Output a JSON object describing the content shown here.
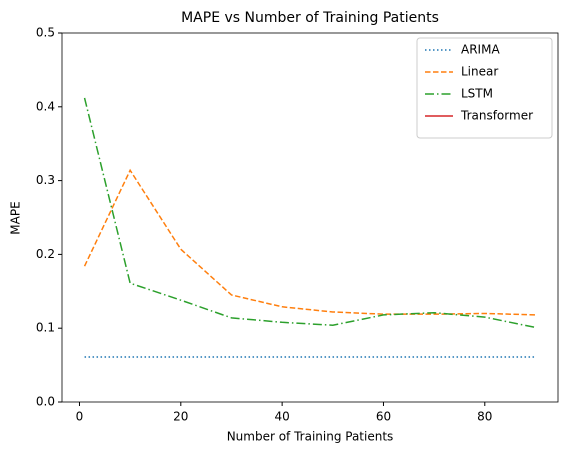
{
  "chart_data": {
    "type": "line",
    "title": "MAPE vs Number of Training Patients",
    "xlabel": "Number of Training Patients",
    "ylabel": "MAPE",
    "x": [
      1,
      10,
      20,
      30,
      40,
      50,
      60,
      70,
      80,
      90
    ],
    "series": [
      {
        "name": "ARIMA",
        "color": "#1f77b4",
        "linestyle": "dotted",
        "values": [
          0.061,
          0.061,
          0.061,
          0.061,
          0.061,
          0.061,
          0.061,
          0.061,
          0.061,
          0.061
        ]
      },
      {
        "name": "Linear",
        "color": "#ff7f0e",
        "linestyle": "dashed",
        "values": [
          0.184,
          0.314,
          0.207,
          0.145,
          0.129,
          0.122,
          0.119,
          0.119,
          0.12,
          0.118
        ]
      },
      {
        "name": "LSTM",
        "color": "#2ca02c",
        "linestyle": "dashdot",
        "values": [
          0.412,
          0.161,
          0.138,
          0.114,
          0.108,
          0.104,
          0.118,
          0.121,
          0.115,
          0.101
        ]
      },
      {
        "name": "Transformer",
        "color": "#d62728",
        "linestyle": "solid",
        "values": [
          null,
          null,
          null,
          null,
          null,
          null,
          null,
          null,
          null,
          null
        ]
      }
    ],
    "xlim": [
      -3.45,
      94.45
    ],
    "ylim": [
      0,
      0.5
    ],
    "xticks": [
      0,
      20,
      40,
      60,
      80
    ],
    "yticks": [
      {
        "value": 0,
        "label": "0.0"
      },
      0.1,
      0.2,
      0.3,
      0.4,
      0.5
    ],
    "grid": false,
    "legend": "upper right"
  }
}
